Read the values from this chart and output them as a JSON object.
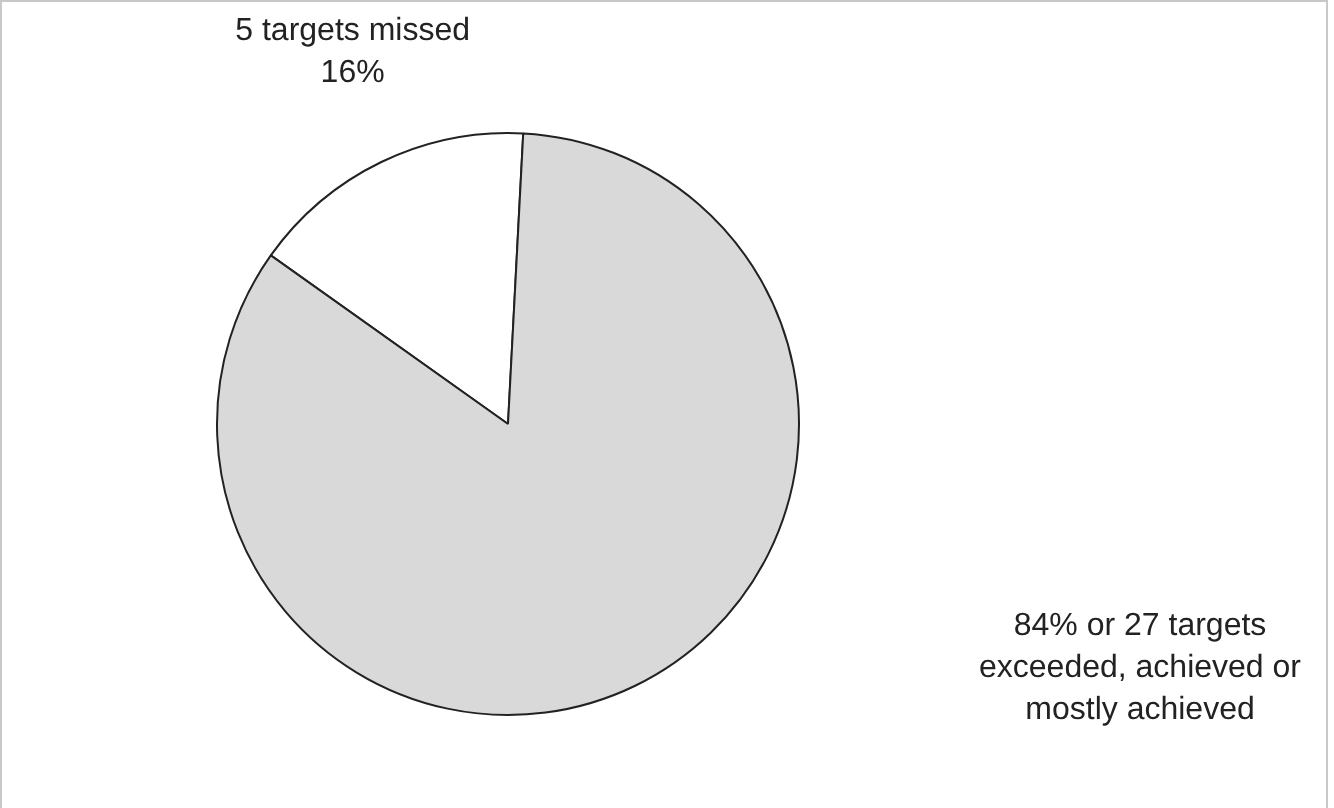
{
  "chart_data": {
    "type": "pie",
    "categories": [
      "5 targets missed",
      "84% or 27 targets exceeded, achieved or mostly achieved"
    ],
    "values": [
      16,
      84
    ],
    "colors": [
      "#ffffff",
      "#d9d9d9"
    ],
    "value_labels": [
      "16%",
      null
    ],
    "legend": false
  }
}
